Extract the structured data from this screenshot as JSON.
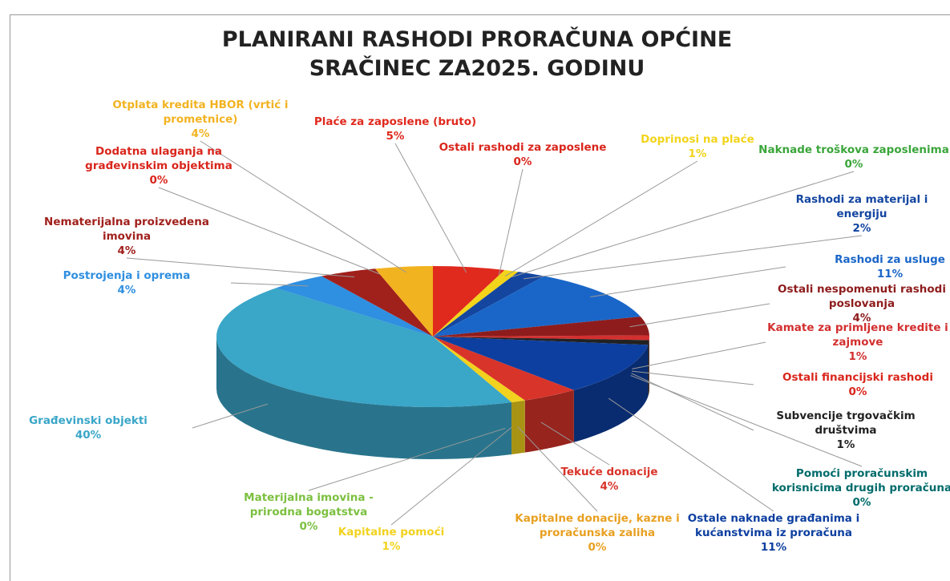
{
  "chart_data": {
    "type": "pie",
    "title": "PLANIRANI RASHODI PRORAČUNA OPĆINE SRAČINEC ZA2025. GODINU",
    "categories": [
      "Plaće za zaposlene (bruto)",
      "Ostali rashodi za zaposlene",
      "Doprinosi na plaće",
      "Naknade troškova zaposlenima",
      "Rashodi za materijal i energiju",
      "Rashodi za usluge",
      "Ostali nespomenuti rashodi poslovanja",
      "Kamate za primljene kredite i zajmove",
      "Ostali financijski rashodi",
      "Subvencije trgovačkim društvima",
      "Pomoći proračunskim korisnicima drugih proračuna",
      "Ostale naknade građanima i kućanstvima iz proračuna",
      "Tekuće donacije",
      "Kapitalne donacije, kazne i proračunska zaliha",
      "Kapitalne pomoći",
      "Materijalna imovina - prirodna bogatstva",
      "Građevinski objekti",
      "Postrojenja i oprema",
      "Nematerijalna proizvedena imovina",
      "Dodatna ulaganja na građevinskim objektima",
      "Otplata kredita HBOR (vrtić i prometnice)"
    ],
    "values": [
      5,
      0,
      1,
      0,
      2,
      11,
      4,
      1,
      0,
      1,
      0,
      11,
      4,
      0,
      1,
      0,
      40,
      4,
      4,
      0,
      4
    ],
    "value_labels": [
      "5%",
      "0%",
      "1%",
      "0%",
      "2%",
      "11%",
      "4%",
      "1%",
      "0%",
      "1%",
      "0%",
      "11%",
      "4%",
      "0%",
      "1%",
      "0%",
      "40%",
      "4%",
      "4%",
      "0%",
      "4%"
    ],
    "colors": [
      "#e02a1e",
      "#d9261c",
      "#f2d41a",
      "#3aa53a",
      "#1446a0",
      "#1a66c8",
      "#8e1c1c",
      "#d32f2f",
      "#d9261c",
      "#222222",
      "#006b6b",
      "#0d3fa0",
      "#d8342a",
      "#e8a020",
      "#f2d21e",
      "#7cc040",
      "#3aa6c8",
      "#2f8fe0",
      "#a0201c",
      "#d9261c",
      "#f2b320"
    ]
  }
}
